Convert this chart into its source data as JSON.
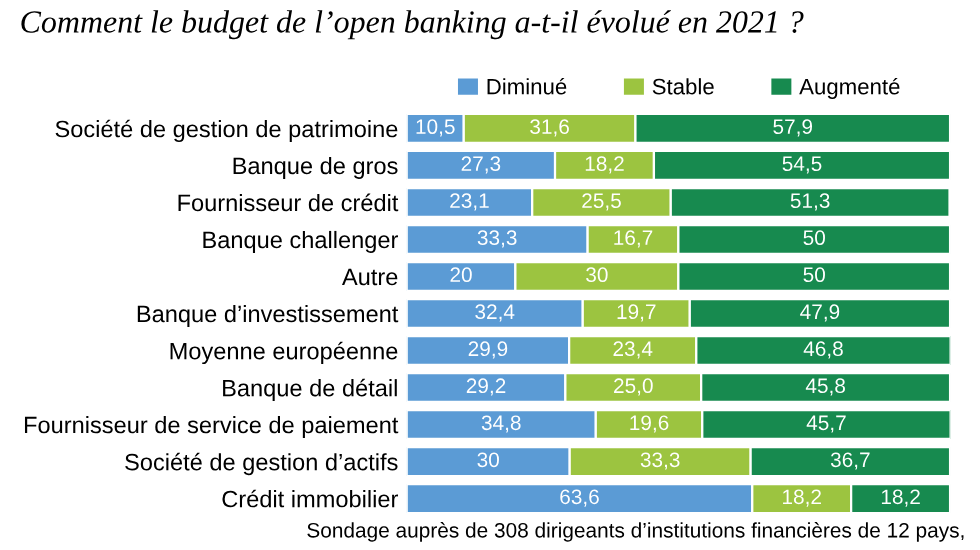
{
  "chart_data": {
    "type": "bar",
    "orientation": "horizontal",
    "stacked": true,
    "title": "Comment le budget de l’open banking a-t-il évolué en 2021 ?",
    "categories": [
      "Société de gestion de patrimoine",
      "Banque de gros",
      "Fournisseur de crédit",
      "Banque challenger",
      "Autre",
      "Banque d’investissement",
      "Moyenne européenne",
      "Banque de détail",
      "Fournisseur de service de paiement",
      "Société de gestion d’actifs",
      "Crédit immobilier"
    ],
    "series": [
      {
        "name": "Diminué",
        "color": "#5b9bd5",
        "values": [
          10.5,
          27.3,
          23.1,
          33.3,
          20,
          32.4,
          29.9,
          29.2,
          34.8,
          30,
          63.6
        ],
        "value_labels": [
          "10,5",
          "27,3",
          "23,1",
          "33,3",
          "20",
          "32,4",
          "29,9",
          "29,2",
          "34,8",
          "30",
          "63,6"
        ]
      },
      {
        "name": "Stable",
        "color": "#9cc440",
        "values": [
          31.6,
          18.2,
          25.5,
          16.7,
          30,
          19.7,
          23.4,
          25.0,
          19.6,
          33.3,
          18.2
        ],
        "value_labels": [
          "31,6",
          "18,2",
          "25,5",
          "16,7",
          "30",
          "19,7",
          "23,4",
          "25,0",
          "19,6",
          "33,3",
          "18,2"
        ]
      },
      {
        "name": "Augmenté",
        "color": "#178a4f",
        "values": [
          57.9,
          54.5,
          51.3,
          50,
          50,
          47.9,
          46.8,
          45.8,
          45.7,
          36.7,
          18.2
        ],
        "value_labels": [
          "57,9",
          "54,5",
          "51,3",
          "50",
          "50",
          "47,9",
          "46,8",
          "45,8",
          "45,7",
          "36,7",
          "18,2"
        ]
      }
    ],
    "legend": "top",
    "grid": false,
    "annotations": [
      "Sondage auprès de 308 dirigeants d’institutions financières de 12 pays,"
    ]
  }
}
